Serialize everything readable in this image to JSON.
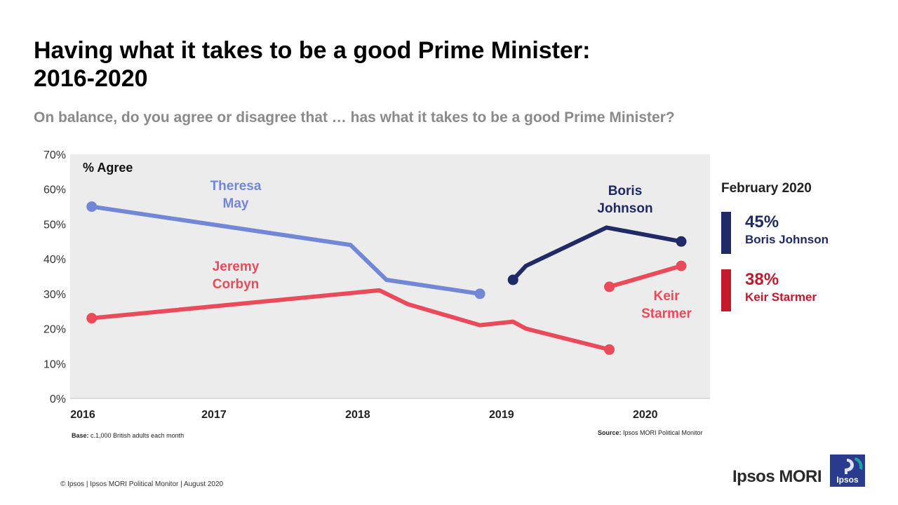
{
  "title_line1": "Having what it takes to be a good Prime Minister:",
  "title_line2": "2016-2020",
  "subtitle": "On balance, do you agree or disagree that … has what it takes to be a good Prime Minister?",
  "latest": {
    "header": "February 2020",
    "items": [
      {
        "pct": "45%",
        "name": "Boris Johnson",
        "color": "#1f2a66"
      },
      {
        "pct": "38%",
        "name": "Keir Starmer",
        "color": "#c4182c"
      }
    ]
  },
  "notes": {
    "base_label": "Base:",
    "base_text": "c.1,000 British adults each month",
    "source_label": "Source:",
    "source_text": "Ipsos MORI Political Monitor",
    "copyright": "© Ipsos | Ipsos MORI Political Monitor | August 2020"
  },
  "brand": {
    "name": "Ipsos MORI",
    "logo_text": "Ipsos",
    "logo_color": "#2a3a8c",
    "logo_accent": "#1fa3a6"
  },
  "chart_data": {
    "type": "line",
    "title": "Having what it takes to be a good Prime Minister: 2016-2020",
    "ylabel": "% Agree",
    "xlabel": "",
    "ylim": [
      0,
      70
    ],
    "xlim": [
      2016,
      2020.4
    ],
    "yticks": [
      0,
      10,
      20,
      30,
      40,
      50,
      60,
      70
    ],
    "ytick_labels": [
      "0%",
      "10%",
      "20%",
      "30%",
      "40%",
      "50%",
      "60%",
      "70%"
    ],
    "xticks": [
      2016,
      2017,
      2018,
      2019,
      2020
    ],
    "xtick_labels": [
      "2016",
      "2017",
      "2018",
      "2019",
      "2020"
    ],
    "plot_background": "#ececec",
    "series": [
      {
        "name": "Theresa May",
        "label_lines": [
          "Theresa",
          "May"
        ],
        "color": "#7287d6",
        "points": [
          [
            2016.15,
            55
          ],
          [
            2017.95,
            44
          ],
          [
            2018.2,
            34
          ],
          [
            2018.85,
            30
          ]
        ],
        "endpoints": [
          0,
          3
        ]
      },
      {
        "name": "Jeremy Corbyn",
        "label_lines": [
          "Jeremy",
          "Corbyn"
        ],
        "color": "#ea4a5a",
        "points": [
          [
            2016.15,
            23
          ],
          [
            2018.15,
            31
          ],
          [
            2018.35,
            27
          ],
          [
            2018.85,
            21
          ],
          [
            2019.08,
            22
          ],
          [
            2019.17,
            20
          ],
          [
            2019.75,
            14
          ]
        ],
        "endpoints": [
          0,
          6
        ]
      },
      {
        "name": "Boris Johnson",
        "label_lines": [
          "Boris",
          "Johnson"
        ],
        "color": "#1f2a66",
        "points": [
          [
            2019.08,
            34
          ],
          [
            2019.17,
            38
          ],
          [
            2019.73,
            49
          ],
          [
            2020.25,
            45
          ]
        ],
        "endpoints": [
          0,
          3
        ]
      },
      {
        "name": "Keir Starmer",
        "label_lines": [
          "Keir",
          "Starmer"
        ],
        "color": "#ea4a5a",
        "points": [
          [
            2019.75,
            32
          ],
          [
            2020.25,
            38
          ]
        ],
        "endpoints": [
          0,
          1
        ]
      }
    ]
  }
}
